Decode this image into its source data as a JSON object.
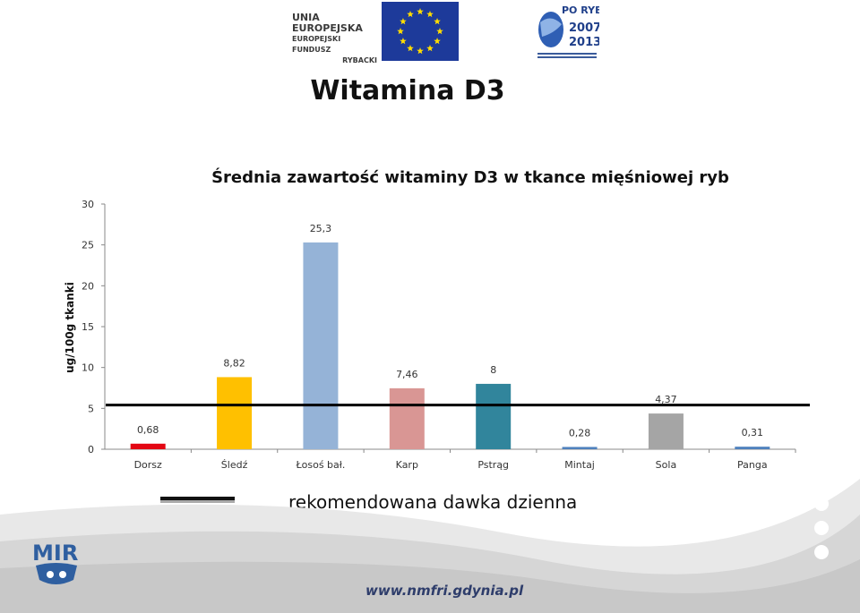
{
  "header": {
    "eu_line1": "UNIA EUROPEJSKA",
    "eu_line2": "EUROPEJSKI FUNDUSZ",
    "eu_line3": "RYBACKI",
    "program_line1": "PO RYBY",
    "program_line2": "2007",
    "program_line3": "2013"
  },
  "slide": {
    "title": "Witamina D3"
  },
  "chart_data": {
    "type": "bar",
    "title": "Średnia zawartość witaminy D3 w tkance mięśniowej ryb",
    "ylabel": "ug/100g tkanki",
    "xlabel": "",
    "ylim": [
      0,
      30
    ],
    "yticks": [
      0,
      5,
      10,
      15,
      20,
      25,
      30
    ],
    "categories": [
      "Dorsz",
      "Śledź",
      "Łosoś bał.",
      "Karp",
      "Pstrąg",
      "Mintaj",
      "Sola",
      "Panga"
    ],
    "values": [
      0.68,
      8.82,
      25.3,
      7.46,
      8,
      0.28,
      4.37,
      0.31
    ],
    "data_labels": [
      "0,68",
      "8,82",
      "25,3",
      "7,46",
      "8",
      "0,28",
      "4,37",
      "0,31"
    ],
    "colors": [
      "#e30613",
      "#ffc000",
      "#95b3d7",
      "#d99694",
      "#31859c",
      "#4f81bd",
      "#a5a5a5",
      "#4f81bd"
    ],
    "reference_line": {
      "value": 5.4,
      "color": "#000000"
    },
    "grid": false
  },
  "legend": {
    "label": "rekomendowana dawka dzienna"
  },
  "footer": {
    "logo_text": "MIR",
    "url": "www.nmfri.gdynia.pl"
  }
}
